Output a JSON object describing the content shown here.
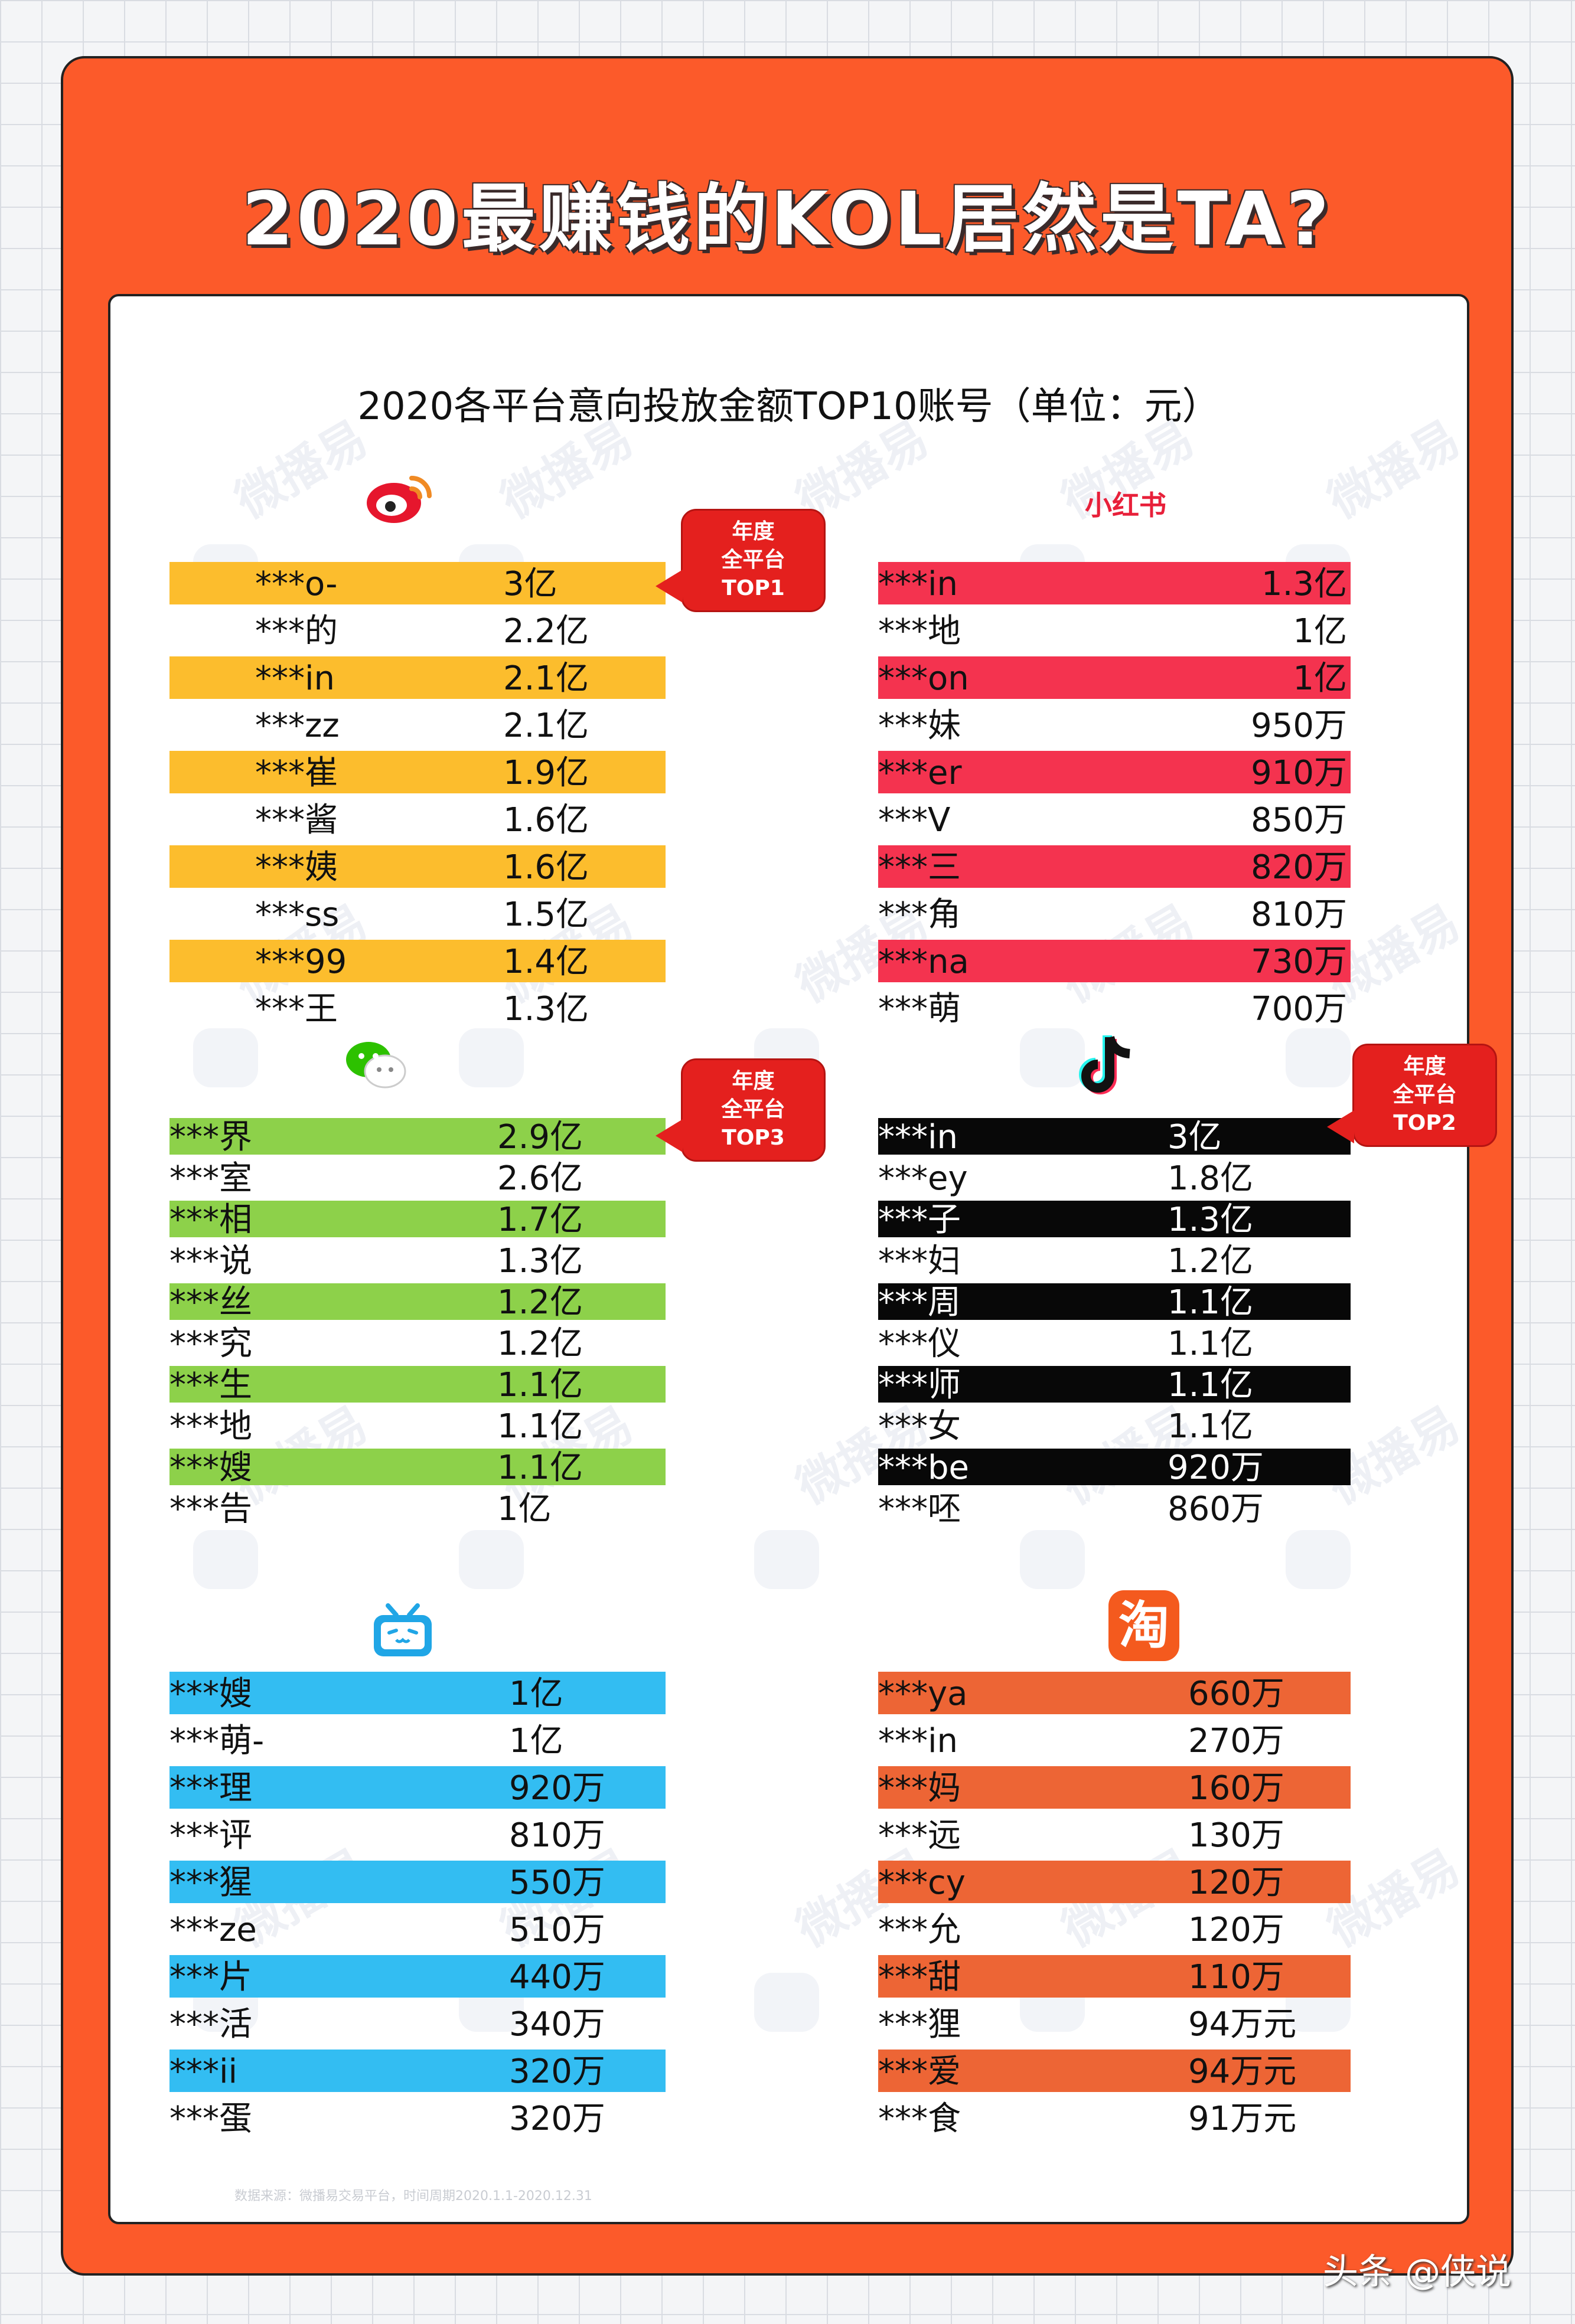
{
  "title": "2020最赚钱的KOL居然是TA?",
  "subtitle": "2020各平台意向投放金额TOP10账号（单位：元）",
  "watermark": "微播易",
  "footnote": "数据来源：微播易交易平台，时间周期2020.1.1-2020.12.31",
  "signature": "头条 @侠说",
  "colors": {
    "weibo": "#fcbd2d",
    "xiaohongshu": "#f4334f",
    "wechat": "#8dd14a",
    "douyin": "#080808",
    "bilibili": "#33bdf2",
    "taobao": "#ed6535",
    "badge": "#e4201e",
    "poster": "#fc5a2a"
  },
  "badges": {
    "top1": [
      "年度",
      "全平台",
      "TOP1"
    ],
    "top3": [
      "年度",
      "全平台",
      "TOP3"
    ],
    "top2": [
      "年度",
      "全平台",
      "TOP2"
    ]
  },
  "platforms": {
    "weibo": {
      "icon": "weibo-icon",
      "rows": [
        {
          "name": "***o-",
          "value": "3亿"
        },
        {
          "name": "***的",
          "value": "2.2亿"
        },
        {
          "name": "***in",
          "value": "2.1亿"
        },
        {
          "name": "***zz",
          "value": "2.1亿"
        },
        {
          "name": "***崔",
          "value": "1.9亿"
        },
        {
          "name": "***酱",
          "value": "1.6亿"
        },
        {
          "name": "***姨",
          "value": "1.6亿"
        },
        {
          "name": "***ss",
          "value": "1.5亿"
        },
        {
          "name": "***99",
          "value": "1.4亿"
        },
        {
          "name": "***王",
          "value": "1.3亿"
        }
      ]
    },
    "xiaohongshu": {
      "icon": "xiaohongshu-icon",
      "logo_text": "小红书",
      "rows": [
        {
          "name": "***in",
          "value": "1.3亿"
        },
        {
          "name": "***地",
          "value": "1亿"
        },
        {
          "name": "***on",
          "value": "1亿"
        },
        {
          "name": "***妹",
          "value": "950万"
        },
        {
          "name": "***er",
          "value": "910万"
        },
        {
          "name": "***V",
          "value": "850万"
        },
        {
          "name": "***三",
          "value": "820万"
        },
        {
          "name": "***角",
          "value": "810万"
        },
        {
          "name": "***na",
          "value": "730万"
        },
        {
          "name": "***萌",
          "value": "700万"
        }
      ]
    },
    "wechat": {
      "icon": "wechat-icon",
      "rows": [
        {
          "name": "***界",
          "value": "2.9亿"
        },
        {
          "name": "***室",
          "value": "2.6亿"
        },
        {
          "name": "***相",
          "value": "1.7亿"
        },
        {
          "name": "***说",
          "value": "1.3亿"
        },
        {
          "name": "***丝",
          "value": "1.2亿"
        },
        {
          "name": "***究",
          "value": "1.2亿"
        },
        {
          "name": "***生",
          "value": "1.1亿"
        },
        {
          "name": "***地",
          "value": "1.1亿"
        },
        {
          "name": "***嫂",
          "value": "1.1亿"
        },
        {
          "name": "***告",
          "value": "1亿"
        }
      ]
    },
    "douyin": {
      "icon": "douyin-icon",
      "rows": [
        {
          "name": "***in",
          "value": "3亿"
        },
        {
          "name": "***ey",
          "value": "1.8亿"
        },
        {
          "name": "***子",
          "value": "1.3亿"
        },
        {
          "name": "***妇",
          "value": "1.2亿"
        },
        {
          "name": "***周",
          "value": "1.1亿"
        },
        {
          "name": "***仪",
          "value": "1.1亿"
        },
        {
          "name": "***师",
          "value": "1.1亿"
        },
        {
          "name": "***女",
          "value": "1.1亿"
        },
        {
          "name": "***be",
          "value": "920万"
        },
        {
          "name": "***呸",
          "value": "860万"
        }
      ]
    },
    "bilibili": {
      "icon": "bilibili-icon",
      "rows": [
        {
          "name": "***嫂",
          "value": "1亿"
        },
        {
          "name": "***萌-",
          "value": "1亿"
        },
        {
          "name": "***理",
          "value": "920万"
        },
        {
          "name": "***评",
          "value": "810万"
        },
        {
          "name": "***猩",
          "value": "550万"
        },
        {
          "name": "***ze",
          "value": "510万"
        },
        {
          "name": "***片",
          "value": "440万"
        },
        {
          "name": "***活",
          "value": "340万"
        },
        {
          "name": "***ii",
          "value": "320万"
        },
        {
          "name": "***蛋",
          "value": "320万"
        }
      ]
    },
    "taobao": {
      "icon": "taobao-icon",
      "logo_text": "淘",
      "rows": [
        {
          "name": "***ya",
          "value": "660万"
        },
        {
          "name": "***in",
          "value": "270万"
        },
        {
          "name": "***妈",
          "value": "160万"
        },
        {
          "name": "***远",
          "value": "130万"
        },
        {
          "name": "***cy",
          "value": "120万"
        },
        {
          "name": "***允",
          "value": "120万"
        },
        {
          "name": "***甜",
          "value": "110万"
        },
        {
          "name": "***狸",
          "value": "94万元"
        },
        {
          "name": "***爱",
          "value": "94万元"
        },
        {
          "name": "***食",
          "value": "91万元"
        }
      ]
    }
  }
}
